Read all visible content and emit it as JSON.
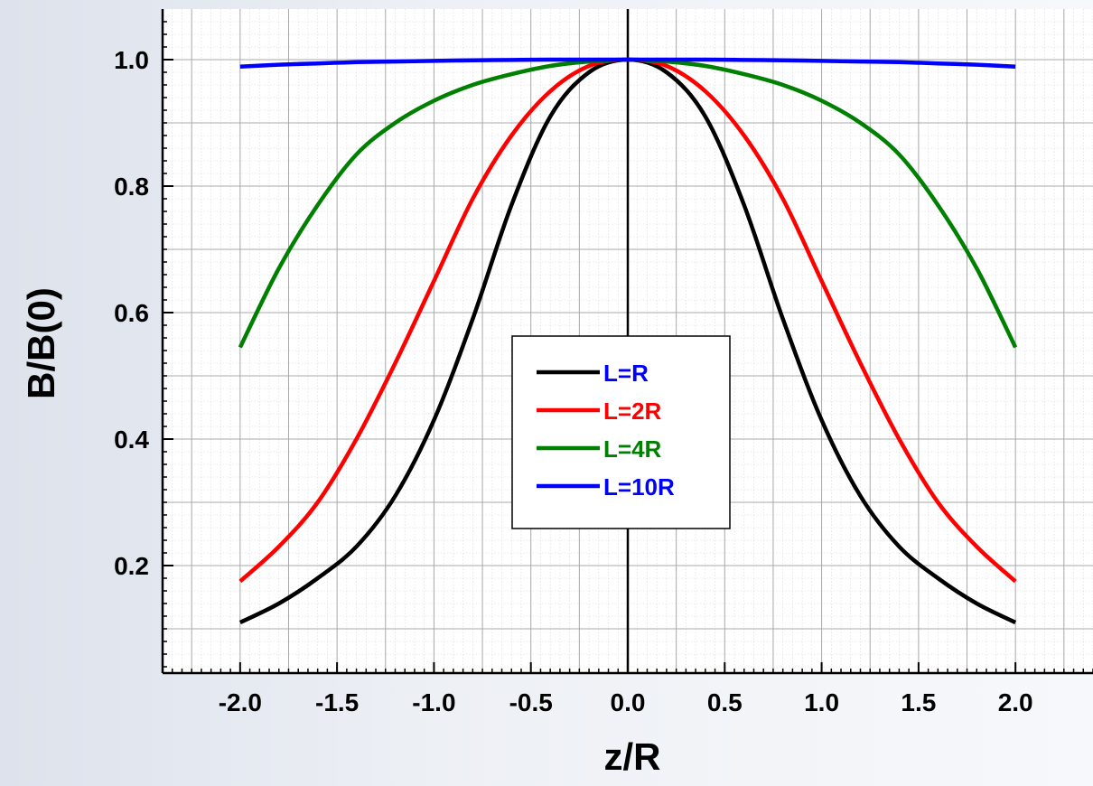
{
  "chart_data": {
    "type": "line",
    "title": "",
    "xlabel": "z/R",
    "ylabel": "B/B(0)",
    "xlim": [
      -2.4,
      2.4
    ],
    "ylim": [
      0.03,
      1.08
    ],
    "x_ticks": [
      -2.0,
      -1.5,
      -1.0,
      -0.5,
      0.0,
      0.5,
      1.0,
      1.5,
      2.0
    ],
    "x_tick_labels": [
      "-2.0",
      "-1.5",
      "-1.0",
      "-0.5",
      "0.0",
      "0.5",
      "1.0",
      "1.5",
      "2.0"
    ],
    "y_ticks": [
      0.2,
      0.4,
      0.6,
      0.8,
      1.0
    ],
    "y_tick_labels": [
      "0.2",
      "0.4",
      "0.6",
      "0.8",
      "1.0"
    ],
    "grid": true,
    "legend_position": "center",
    "x": [
      -2.0,
      -1.8,
      -1.6,
      -1.4,
      -1.2,
      -1.0,
      -0.8,
      -0.6,
      -0.4,
      -0.2,
      0.0,
      0.2,
      0.4,
      0.6,
      0.8,
      1.0,
      1.2,
      1.4,
      1.6,
      1.8,
      2.0
    ],
    "series": [
      {
        "name": "L=R",
        "color": "#000000",
        "values": [
          0.11,
          0.14,
          0.18,
          0.23,
          0.31,
          0.43,
          0.59,
          0.77,
          0.91,
          0.98,
          1.0,
          0.98,
          0.91,
          0.77,
          0.59,
          0.43,
          0.31,
          0.23,
          0.18,
          0.14,
          0.11
        ]
      },
      {
        "name": "L=2R",
        "color": "#ff0000",
        "values": [
          0.175,
          0.23,
          0.3,
          0.4,
          0.52,
          0.65,
          0.78,
          0.88,
          0.95,
          0.99,
          1.0,
          0.99,
          0.95,
          0.88,
          0.78,
          0.65,
          0.52,
          0.4,
          0.3,
          0.23,
          0.175
        ]
      },
      {
        "name": "L=4R",
        "color": "#008000",
        "values": [
          0.545,
          0.67,
          0.77,
          0.85,
          0.9,
          0.935,
          0.96,
          0.977,
          0.99,
          0.997,
          1.0,
          0.997,
          0.99,
          0.977,
          0.96,
          0.935,
          0.9,
          0.85,
          0.77,
          0.67,
          0.545
        ]
      },
      {
        "name": "L=10R",
        "color": "#0000ff",
        "values": [
          0.989,
          0.992,
          0.994,
          0.996,
          0.997,
          0.998,
          0.999,
          0.9995,
          1.0,
          1.0,
          1.0,
          1.0,
          1.0,
          0.9995,
          0.999,
          0.998,
          0.997,
          0.996,
          0.994,
          0.992,
          0.989
        ]
      }
    ]
  }
}
